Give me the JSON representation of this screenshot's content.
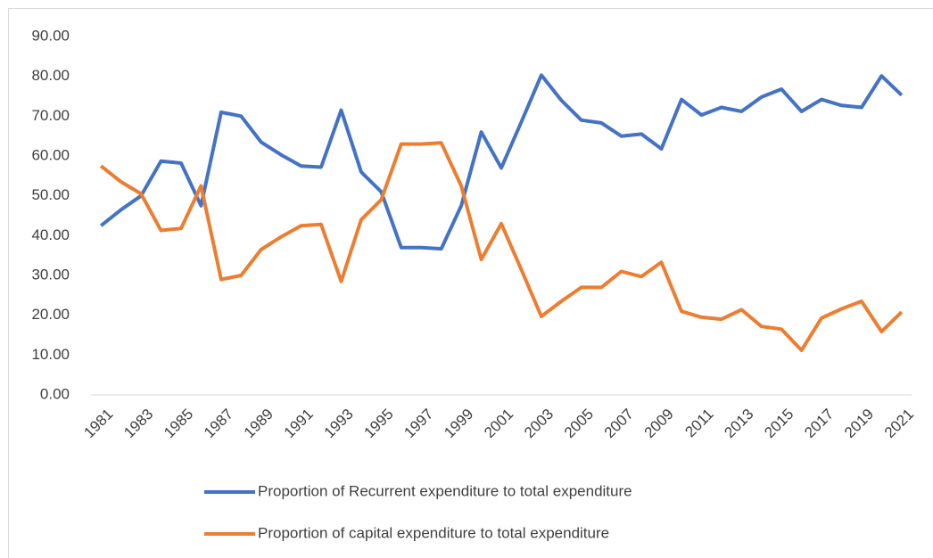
{
  "chart_data": {
    "type": "line",
    "categories": [
      "1981",
      null,
      "1983",
      null,
      "1985",
      null,
      "1987",
      null,
      "1989",
      null,
      "1991",
      null,
      "1993",
      null,
      "1995",
      null,
      "1997",
      null,
      "1999",
      null,
      "2001",
      null,
      "2003",
      null,
      "2005",
      null,
      "2007",
      null,
      "2009",
      null,
      "2011",
      null,
      "2013",
      null,
      "2015",
      null,
      "2017",
      null,
      "2019",
      null,
      "2021"
    ],
    "series": [
      {
        "name": "Proportion of Recurrent expenditure to total expenditure",
        "color": "#4472c4",
        "values": [
          42.5,
          46.5,
          50,
          58.7,
          58.2,
          47.5,
          71,
          70,
          63.5,
          60.3,
          57.5,
          57.2,
          71.5,
          56,
          51,
          37,
          37,
          36.7,
          47.5,
          66,
          57,
          68.5,
          80.3,
          74,
          69,
          68.3,
          65,
          65.5,
          61.8,
          74.2,
          70.3,
          72.2,
          71.2,
          74.8,
          76.8,
          71.2,
          74.2,
          72.7,
          72.2,
          80.1,
          75.3
        ]
      },
      {
        "name": "Proportion of capital expenditure to total expenditure",
        "color": "#ed7d31",
        "values": [
          57.5,
          53.5,
          50.5,
          41.3,
          41.8,
          52.5,
          29,
          30,
          36.5,
          39.7,
          42.5,
          42.8,
          28.5,
          44,
          49,
          63,
          63,
          63.3,
          52.5,
          34,
          43,
          31.5,
          19.7,
          23.5,
          27,
          27,
          31,
          29.7,
          33.3,
          21,
          19.5,
          19,
          21.4,
          17.2,
          16.5,
          11.2,
          19.3,
          21.6,
          23.5,
          15.9,
          20.8
        ]
      }
    ],
    "ylim": [
      0,
      90
    ],
    "yticks": [
      {
        "value": 0,
        "label": "0.00"
      },
      {
        "value": 10,
        "label": "10.00"
      },
      {
        "value": 20,
        "label": "20.00"
      },
      {
        "value": 30,
        "label": "30.00"
      },
      {
        "value": 40,
        "label": "40.00"
      },
      {
        "value": 50,
        "label": "50.00"
      },
      {
        "value": 60,
        "label": "60.00"
      },
      {
        "value": 70,
        "label": "70.00"
      },
      {
        "value": 80,
        "label": "80.00"
      },
      {
        "value": 90,
        "label": "90.00"
      }
    ],
    "grid": false,
    "legend": "bottom"
  }
}
